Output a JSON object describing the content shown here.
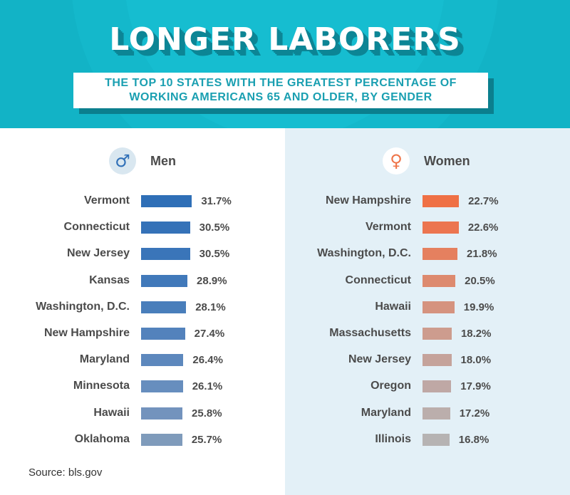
{
  "header": {
    "title": "LONGER LABORERS",
    "subtitle_line1": "THE TOP 10 STATES WITH THE GREATEST PERCENTAGE OF",
    "subtitle_line2": "WORKING AMERICANS 65 AND OLDER, BY GENDER"
  },
  "source": "Source: bls.gov",
  "colors": {
    "header_bg": "#12b3c6",
    "men_accent": "#2f6fb7",
    "women_accent": "#ee7448",
    "women_panel_bg": "#e3f0f7"
  },
  "chart_data": [
    {
      "type": "bar",
      "orientation": "horizontal",
      "name": "Men",
      "icon": "male-symbol-icon",
      "title": "Men",
      "categories": [
        "Vermont",
        "Connecticut",
        "New Jersey",
        "Kansas",
        "Washington, D.C.",
        "New Hampshire",
        "Maryland",
        "Minnesota",
        "Hawaii",
        "Oklahoma"
      ],
      "values": [
        31.7,
        30.5,
        30.5,
        28.9,
        28.1,
        27.4,
        26.4,
        26.1,
        25.8,
        25.7
      ],
      "labels": [
        "31.7%",
        "30.5%",
        "30.5%",
        "28.9%",
        "28.1%",
        "27.4%",
        "26.4%",
        "26.1%",
        "25.8%",
        "25.7%"
      ],
      "colors": [
        "#2f6fb7",
        "#3572b8",
        "#3a75b9",
        "#4179ba",
        "#497ebb",
        "#5382bc",
        "#5d88bd",
        "#678ebe",
        "#7393bd",
        "#7f9bbb"
      ],
      "unit": "%"
    },
    {
      "type": "bar",
      "orientation": "horizontal",
      "name": "Women",
      "icon": "female-symbol-icon",
      "title": "Women",
      "categories": [
        "New Hampshire",
        "Vermont",
        "Washington, D.C.",
        "Connecticut",
        "Hawaii",
        "Massachusetts",
        "New Jersey",
        "Oregon",
        "Maryland",
        "Illinois"
      ],
      "values": [
        22.7,
        22.6,
        21.8,
        20.5,
        19.9,
        18.2,
        18.0,
        17.9,
        17.2,
        16.8
      ],
      "labels": [
        "22.7%",
        "22.6%",
        "21.8%",
        "20.5%",
        "19.9%",
        "18.2%",
        "18.0%",
        "17.9%",
        "17.2%",
        "16.8%"
      ],
      "colors": [
        "#ef7045",
        "#ec7550",
        "#e5805f",
        "#dd8a6f",
        "#d5937f",
        "#cd9c8e",
        "#c5a39b",
        "#bfa8a5",
        "#bbaeac",
        "#b6b3b3"
      ],
      "unit": "%"
    }
  ]
}
